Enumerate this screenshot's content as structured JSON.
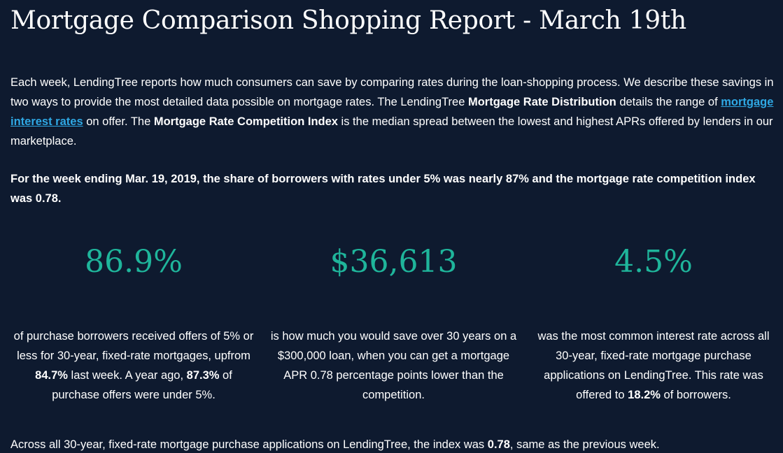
{
  "title": "Mortgage Comparison Shopping Report - March 19th",
  "intro": {
    "part1": "Each week, LendingTree reports how much consumers can save by comparing rates during the loan-shopping process. We describe these savings in two ways to provide the most detailed data possible on mortgage rates. The LendingTree ",
    "bold1": "Mortgage Rate Distribution",
    "part2": " details the range of ",
    "link": "mortgage interest rates",
    "part3": " on offer. The ",
    "bold2": "Mortgage Rate Competition Index",
    "part4": " is the median spread between the lowest and highest APRs offered by lenders in our marketplace."
  },
  "headline": "For the week ending Mar. 19, 2019, the share of borrowers with rates under 5% was nearly 87% and the mortgage rate competition index was 0.78.",
  "stats": [
    {
      "value": "86.9%",
      "desc_a": "of purchase borrowers received offers of 5% or less for 30-year, fixed-rate mortgages, upfrom ",
      "bold_a": "84.7%",
      "desc_b": " last week. A year ago, ",
      "bold_b": "87.3%",
      "desc_c": " of purchase offers were under 5%."
    },
    {
      "value": "$36,613",
      "desc": "is how much you would save over 30 years on a $300,000 loan, when you can get a mortgage APR 0.78 percentage points lower than the competition."
    },
    {
      "value": "4.5%",
      "desc_a": "was the most common interest rate across all 30-year, fixed-rate mortgage purchase applications on LendingTree. This rate was offered to ",
      "bold_a": "18.2%",
      "desc_b": " of borrowers."
    }
  ],
  "footer": {
    "part1": "Across all 30-year, fixed-rate mortgage purchase applications on LendingTree, the index was ",
    "bold": "0.78",
    "part2": ", same as the previous week."
  },
  "colors": {
    "background": "#0e1a2f",
    "accent": "#1fb59b",
    "link": "#2fa8e4"
  }
}
